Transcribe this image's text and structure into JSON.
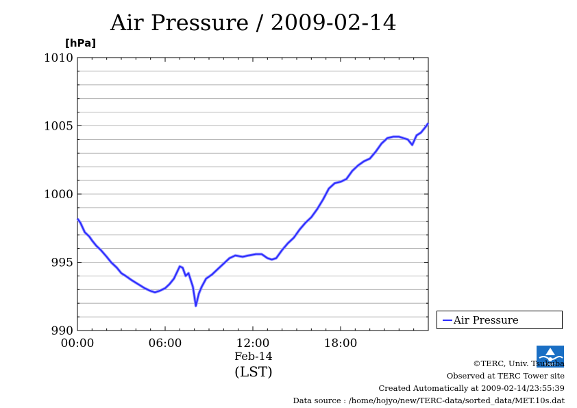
{
  "chart_data": {
    "type": "line",
    "title": "Air Pressure / 2009-02-14",
    "ylabel": "[hPa]",
    "xlabel": "(LST)",
    "date_label": "Feb-14",
    "ylim": [
      990,
      1010
    ],
    "xlim": [
      0,
      24
    ],
    "y_ticks": [
      "990",
      "995",
      "1000",
      "1005",
      "1010"
    ],
    "y_tick_values": [
      990,
      995,
      1000,
      1005,
      1010
    ],
    "x_ticks": [
      "00:00",
      "06:00",
      "12:00",
      "18:00"
    ],
    "x_tick_values": [
      0,
      6,
      12,
      18
    ],
    "grid": true,
    "legend_position": "bottom-right",
    "series": [
      {
        "name": "Air Pressure",
        "color": "#2b2bff",
        "x": [
          0,
          0.2,
          0.5,
          0.8,
          1.0,
          1.3,
          1.6,
          2.0,
          2.3,
          2.7,
          3.0,
          3.3,
          3.7,
          4.0,
          4.3,
          4.6,
          5.0,
          5.3,
          5.6,
          6.0,
          6.3,
          6.6,
          7.0,
          7.2,
          7.4,
          7.6,
          7.9,
          8.1,
          8.3,
          8.5,
          8.8,
          9.2,
          9.6,
          10.0,
          10.4,
          10.8,
          11.3,
          11.7,
          12.2,
          12.6,
          13.0,
          13.3,
          13.6,
          14.0,
          14.4,
          14.8,
          15.2,
          15.6,
          16.0,
          16.4,
          16.8,
          17.2,
          17.6,
          18.0,
          18.4,
          18.8,
          19.2,
          19.6,
          20.0,
          20.4,
          20.8,
          21.2,
          21.6,
          22.0,
          22.3,
          22.6,
          22.9,
          23.2,
          23.5,
          23.8,
          24.0
        ],
        "values": [
          998.2,
          997.9,
          997.2,
          996.9,
          996.6,
          996.2,
          995.9,
          995.4,
          995.0,
          994.6,
          994.2,
          994.0,
          993.7,
          993.5,
          993.3,
          993.1,
          992.9,
          992.8,
          992.9,
          993.1,
          993.4,
          993.8,
          994.7,
          994.6,
          994.0,
          994.2,
          993.2,
          991.8,
          992.7,
          993.2,
          993.8,
          994.1,
          994.5,
          994.9,
          995.3,
          995.5,
          995.4,
          995.5,
          995.6,
          995.6,
          995.3,
          995.2,
          995.3,
          995.9,
          996.4,
          996.8,
          997.4,
          997.9,
          998.3,
          998.9,
          999.6,
          1000.4,
          1000.8,
          1000.9,
          1001.1,
          1001.7,
          1002.1,
          1002.4,
          1002.6,
          1003.1,
          1003.7,
          1004.1,
          1004.2,
          1004.2,
          1004.1,
          1004.0,
          1003.6,
          1004.3,
          1004.5,
          1004.9,
          1005.2
        ]
      }
    ]
  },
  "credits": {
    "copyright": "©TERC, Univ. Tsukuba",
    "observed": "Observed at TERC Tower site",
    "created": "Created Automatically at 2009-02-14/23:55:39",
    "source": "Data source : /home/hojyo/new/TERC-data/sorted_data/MET.10s.dat"
  },
  "logo": {
    "text": "TERC",
    "color": "#1a6fc4"
  }
}
